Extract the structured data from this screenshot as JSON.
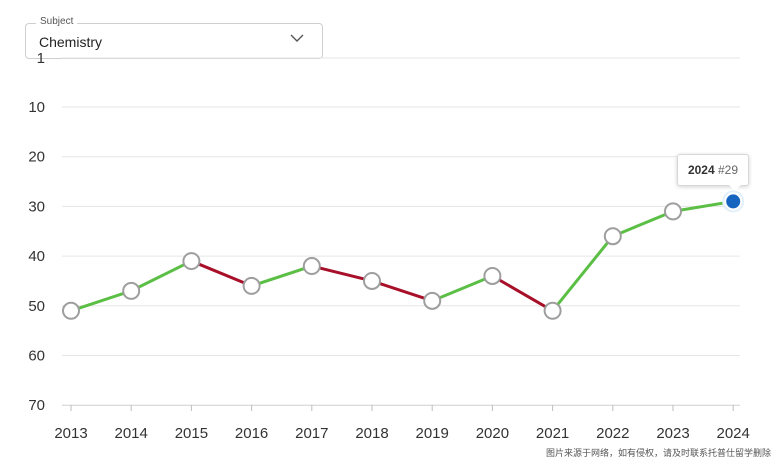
{
  "subject": {
    "label": "Subject",
    "value": "Chemistry"
  },
  "tooltip": {
    "year": "2024",
    "rank": "#29"
  },
  "watermark": "图片来源于网络，如有侵权，请及时联系托普仕留学删除",
  "colors": {
    "improve": "#5bbf45",
    "decline": "#a8102a",
    "highlight": "#1565c0",
    "grid": "#e6e6e6"
  },
  "chart_data": {
    "type": "line",
    "title": "",
    "xlabel": "",
    "ylabel": "",
    "y_inverted": true,
    "ylim": [
      1,
      70
    ],
    "y_ticks": [
      1,
      10,
      20,
      30,
      40,
      50,
      60,
      70
    ],
    "categories": [
      "2013",
      "2014",
      "2015",
      "2016",
      "2017",
      "2018",
      "2019",
      "2020",
      "2021",
      "2022",
      "2023",
      "2024"
    ],
    "values": [
      51,
      47,
      41,
      46,
      42,
      45,
      49,
      44,
      51,
      36,
      31,
      29
    ],
    "highlighted": "2024"
  }
}
